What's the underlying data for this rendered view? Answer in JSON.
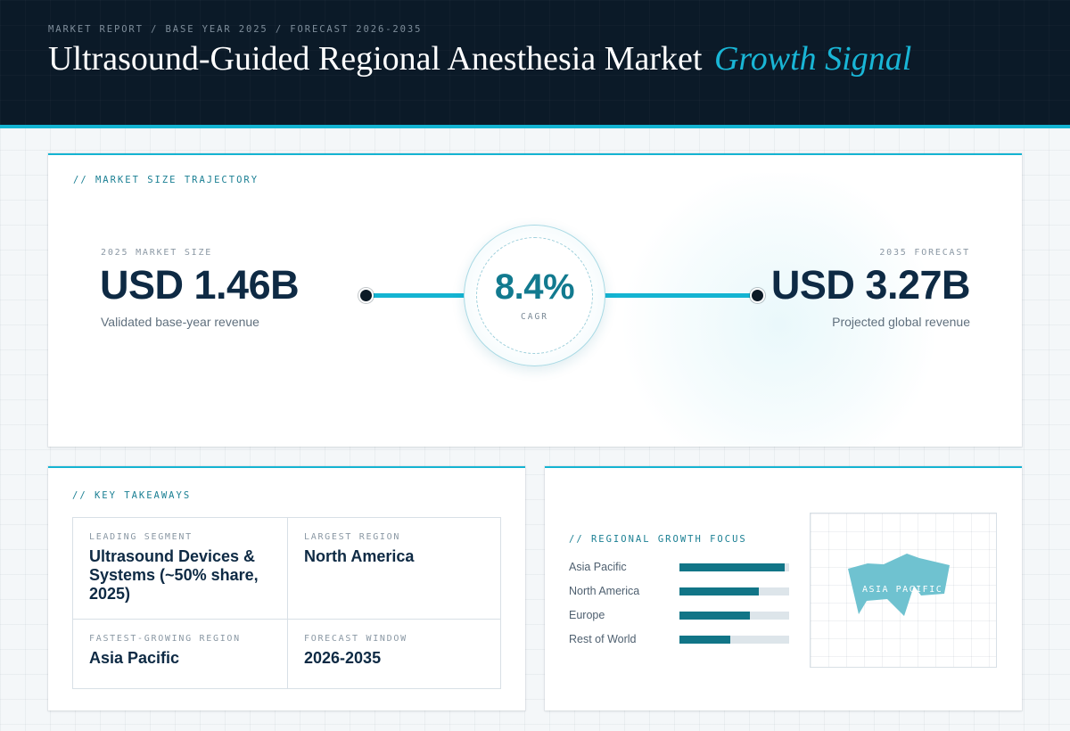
{
  "header": {
    "eyebrow": "MARKET REPORT / BASE YEAR 2025 / FORECAST 2026-2035",
    "title": "Ultrasound-Guided Regional Anesthesia Market",
    "title_accent": "Growth Signal"
  },
  "trajectory": {
    "section_label": "// MARKET SIZE TRAJECTORY",
    "start": {
      "label": "2025 MARKET SIZE",
      "value": "USD 1.46B",
      "caption": "Validated base-year revenue"
    },
    "end": {
      "label": "2035 FORECAST",
      "value": "USD 3.27B",
      "caption": "Projected global revenue"
    },
    "cagr": {
      "value": "8.4%",
      "label": "CAGR"
    }
  },
  "takeaways": {
    "section_label": "// KEY TAKEAWAYS",
    "items": [
      {
        "key": "LEADING SEGMENT",
        "value": "Ultrasound Devices & Systems (~50% share, 2025)"
      },
      {
        "key": "LARGEST REGION",
        "value": "North America"
      },
      {
        "key": "FASTEST-GROWING REGION",
        "value": "Asia Pacific"
      },
      {
        "key": "FORECAST WINDOW",
        "value": "2026-2035"
      }
    ]
  },
  "regional": {
    "section_label": "// REGIONAL GROWTH FOCUS",
    "bar_color": "#117587",
    "track_color": "#dde5ea",
    "bars": [
      {
        "name": "Asia Pacific",
        "fraction": 0.96
      },
      {
        "name": "North America",
        "fraction": 0.72
      },
      {
        "name": "Europe",
        "fraction": 0.64
      },
      {
        "name": "Rest of World",
        "fraction": 0.46
      }
    ],
    "map_label": "ASIA PACIFIC",
    "map_color": "#6fc2d0"
  },
  "colors": {
    "accent": "#14b4d2",
    "navy": "#0b1a28",
    "value_text": "#0e2a44"
  }
}
